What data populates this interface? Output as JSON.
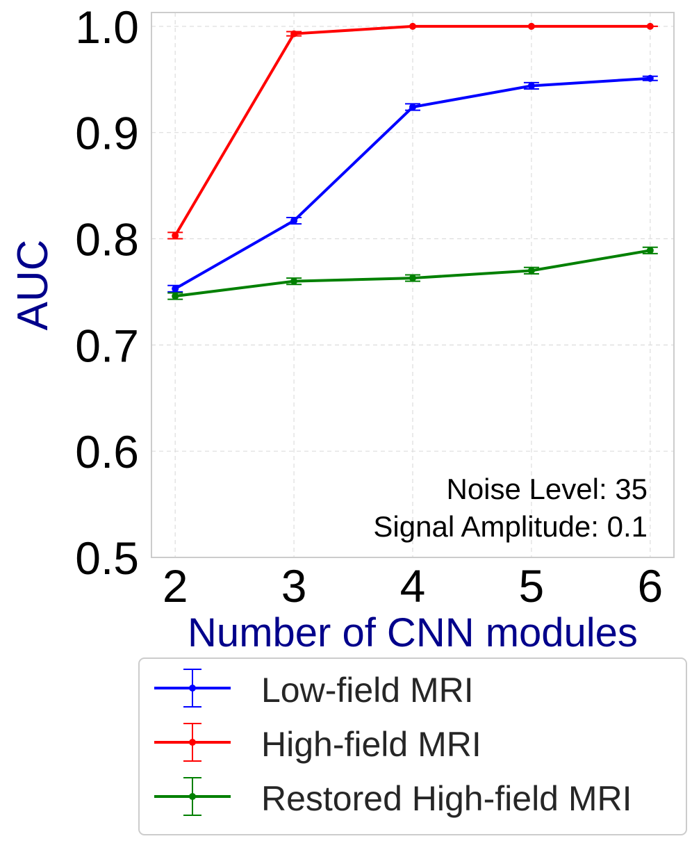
{
  "chart_data": {
    "type": "line",
    "title": "",
    "xlabel": "Number of CNN modules",
    "ylabel": "AUC",
    "x": [
      2,
      3,
      4,
      5,
      6
    ],
    "x_tick_labels": [
      "2",
      "3",
      "4",
      "5",
      "6"
    ],
    "y_tick_labels": [
      "0.5",
      "0.6",
      "0.7",
      "0.8",
      "0.9",
      "1.0"
    ],
    "y_ticks": [
      0.5,
      0.6,
      0.7,
      0.8,
      0.9,
      1.0
    ],
    "xlim": [
      1.8,
      6.2
    ],
    "ylim": [
      0.5,
      1.013
    ],
    "grid": true,
    "legend_position": "below plot",
    "series": [
      {
        "name": "Low-field MRI",
        "color": "#0000ff",
        "values": [
          0.753,
          0.817,
          0.924,
          0.944,
          0.951
        ],
        "errors": [
          0.003,
          0.003,
          0.003,
          0.003,
          0.002
        ]
      },
      {
        "name": "High-field MRI",
        "color": "#ff0000",
        "values": [
          0.803,
          0.993,
          1.0,
          1.0,
          1.0
        ],
        "errors": [
          0.003,
          0.002,
          0.0,
          0.0,
          0.0
        ]
      },
      {
        "name": "Restored High-field MRI",
        "color": "#008000",
        "values": [
          0.746,
          0.76,
          0.763,
          0.77,
          0.789
        ],
        "errors": [
          0.003,
          0.003,
          0.003,
          0.003,
          0.003
        ]
      }
    ],
    "annotations": [
      "Noise Level: 35",
      "Signal Amplitude: 0.1"
    ]
  },
  "colors": {
    "axis_label": "#00008b",
    "grid": "#dddddd",
    "frame": "#cccccc",
    "legend_border": "#cccccc"
  }
}
